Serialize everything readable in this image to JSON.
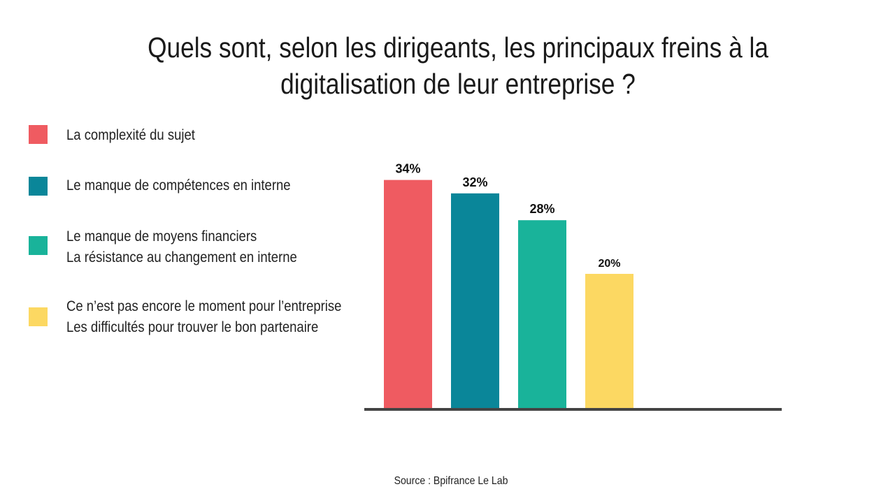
{
  "chart_data": {
    "type": "bar",
    "title": "Quels sont, selon les dirigeants, les principaux freins à la digitalisation de leur entreprise ?",
    "title_lines": [
      "Quels sont, selon les dirigeants, les principaux freins à la",
      "digitalisation de leur entreprise ?"
    ],
    "categories": [
      [
        "La complexité du sujet"
      ],
      [
        "Le manque de compétences en interne"
      ],
      [
        "Le manque de moyens financiers",
        "La résistance au changement en interne"
      ],
      [
        "Ce n’est pas encore le moment pour l’entreprise",
        "Les difficultés pour trouver le bon partenaire"
      ]
    ],
    "values": [
      34,
      32,
      28,
      20
    ],
    "data_labels": [
      "34%",
      "32%",
      "28%",
      "20%"
    ],
    "colors": [
      "#EF5B61",
      "#0A8699",
      "#19B39A",
      "#FCD862"
    ],
    "xlabel": "",
    "ylabel": "",
    "ylim": [
      0,
      40
    ],
    "grid": false,
    "legend_position": "left",
    "source": "Source : Bpifrance Le Lab"
  }
}
